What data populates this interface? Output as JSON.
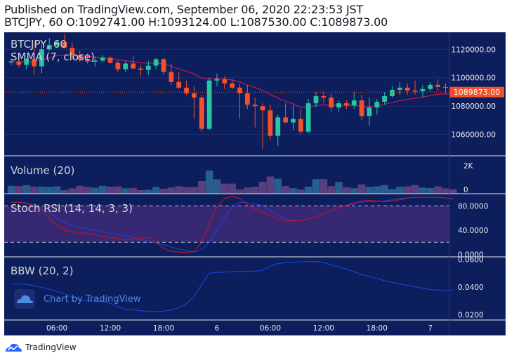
{
  "header": {
    "published": "Published on TradingView.com, September 06, 2020 22:23:53 JST",
    "ohlc": "BTCJPY, 60 O:1092741.00 H:1093124.00 L:1087530.00 C:1089873.00"
  },
  "colors": {
    "background": "#0c1e5b",
    "up": "#26c6a0",
    "down": "#f4502a",
    "smma": "#c2185b",
    "volume": "#6a4a8c",
    "rsi_band": "#3f2a78",
    "rsi_line": "#b71c1c",
    "bbw_line": "#1e3fd6",
    "price_tag": "#f4502a"
  },
  "chart_data": [
    {
      "type": "candlestick",
      "title": "BTCJPY, 60",
      "indicator_label": "SMMA (7, close)",
      "y_ticks": [
        "1120000.00",
        "1100000.00",
        "1080000.00",
        "1060000.00"
      ],
      "ylim": [
        1045000,
        1132000
      ],
      "last_price_label": "1089873.00",
      "last_price": 1089873,
      "x_ticks": [
        "06:00",
        "12:00",
        "18:00",
        "6",
        "06:00",
        "12:00",
        "18:00",
        "7"
      ],
      "candles": [
        {
          "o": 1111000,
          "h": 1113000,
          "l": 1109000,
          "c": 1111500
        },
        {
          "o": 1111500,
          "h": 1114000,
          "l": 1107000,
          "c": 1109000
        },
        {
          "o": 1109000,
          "h": 1114000,
          "l": 1106000,
          "c": 1113000
        },
        {
          "o": 1113000,
          "h": 1126000,
          "l": 1102000,
          "c": 1108000
        },
        {
          "o": 1108000,
          "h": 1124000,
          "l": 1103000,
          "c": 1120000
        },
        {
          "o": 1120000,
          "h": 1128000,
          "l": 1119000,
          "c": 1123000
        },
        {
          "o": 1123000,
          "h": 1126000,
          "l": 1121000,
          "c": 1125000
        },
        {
          "o": 1125000,
          "h": 1131000,
          "l": 1121000,
          "c": 1121000
        },
        {
          "o": 1121000,
          "h": 1125000,
          "l": 1113000,
          "c": 1116000
        },
        {
          "o": 1116000,
          "h": 1119000,
          "l": 1111000,
          "c": 1113000
        },
        {
          "o": 1113000,
          "h": 1117000,
          "l": 1110000,
          "c": 1111500
        },
        {
          "o": 1111500,
          "h": 1115000,
          "l": 1108000,
          "c": 1112000
        },
        {
          "o": 1112000,
          "h": 1116000,
          "l": 1111000,
          "c": 1114000
        },
        {
          "o": 1114000,
          "h": 1115000,
          "l": 1110000,
          "c": 1110500
        },
        {
          "o": 1110500,
          "h": 1112000,
          "l": 1104000,
          "c": 1106000
        },
        {
          "o": 1106000,
          "h": 1112000,
          "l": 1104000,
          "c": 1110000
        },
        {
          "o": 1110000,
          "h": 1115000,
          "l": 1106000,
          "c": 1106500
        },
        {
          "o": 1106500,
          "h": 1109000,
          "l": 1101000,
          "c": 1105500
        },
        {
          "o": 1105500,
          "h": 1112000,
          "l": 1102000,
          "c": 1108500
        },
        {
          "o": 1108500,
          "h": 1114000,
          "l": 1106000,
          "c": 1113000
        },
        {
          "o": 1113000,
          "h": 1114000,
          "l": 1102000,
          "c": 1104000
        },
        {
          "o": 1104000,
          "h": 1110000,
          "l": 1095000,
          "c": 1097000
        },
        {
          "o": 1097000,
          "h": 1104000,
          "l": 1092000,
          "c": 1093000
        },
        {
          "o": 1093000,
          "h": 1098000,
          "l": 1088000,
          "c": 1089000
        },
        {
          "o": 1089000,
          "h": 1094000,
          "l": 1071000,
          "c": 1086000
        },
        {
          "o": 1086000,
          "h": 1088000,
          "l": 1062000,
          "c": 1064000
        },
        {
          "o": 1064000,
          "h": 1100000,
          "l": 1063000,
          "c": 1098000
        },
        {
          "o": 1098000,
          "h": 1103000,
          "l": 1094000,
          "c": 1099000
        },
        {
          "o": 1099000,
          "h": 1101000,
          "l": 1092000,
          "c": 1096000
        },
        {
          "o": 1096000,
          "h": 1099000,
          "l": 1092000,
          "c": 1093000
        },
        {
          "o": 1093000,
          "h": 1096000,
          "l": 1071000,
          "c": 1089000
        },
        {
          "o": 1089000,
          "h": 1095000,
          "l": 1078000,
          "c": 1081000
        },
        {
          "o": 1081000,
          "h": 1086000,
          "l": 1065000,
          "c": 1080000
        },
        {
          "o": 1080000,
          "h": 1082000,
          "l": 1050000,
          "c": 1077000
        },
        {
          "o": 1077000,
          "h": 1081000,
          "l": 1056000,
          "c": 1059000
        },
        {
          "o": 1059000,
          "h": 1074000,
          "l": 1052000,
          "c": 1072000
        },
        {
          "o": 1072000,
          "h": 1082000,
          "l": 1068000,
          "c": 1068500
        },
        {
          "o": 1068500,
          "h": 1081000,
          "l": 1063000,
          "c": 1071000
        },
        {
          "o": 1071000,
          "h": 1078000,
          "l": 1060000,
          "c": 1062000
        },
        {
          "o": 1062000,
          "h": 1085000,
          "l": 1061000,
          "c": 1082000
        },
        {
          "o": 1082000,
          "h": 1090000,
          "l": 1079000,
          "c": 1087000
        },
        {
          "o": 1087000,
          "h": 1090000,
          "l": 1082000,
          "c": 1086000
        },
        {
          "o": 1086000,
          "h": 1089000,
          "l": 1076000,
          "c": 1079000
        },
        {
          "o": 1079000,
          "h": 1084000,
          "l": 1076000,
          "c": 1082000
        },
        {
          "o": 1082000,
          "h": 1084000,
          "l": 1078000,
          "c": 1080500
        },
        {
          "o": 1080500,
          "h": 1090000,
          "l": 1078000,
          "c": 1084000
        },
        {
          "o": 1084000,
          "h": 1088000,
          "l": 1070000,
          "c": 1073000
        },
        {
          "o": 1073000,
          "h": 1086000,
          "l": 1066000,
          "c": 1079000
        },
        {
          "o": 1079000,
          "h": 1085000,
          "l": 1074000,
          "c": 1083000
        },
        {
          "o": 1083000,
          "h": 1090000,
          "l": 1081000,
          "c": 1087000
        },
        {
          "o": 1087000,
          "h": 1094000,
          "l": 1086000,
          "c": 1091500
        },
        {
          "o": 1091500,
          "h": 1097000,
          "l": 1088000,
          "c": 1093000
        },
        {
          "o": 1093000,
          "h": 1096000,
          "l": 1088000,
          "c": 1091000
        },
        {
          "o": 1091000,
          "h": 1098000,
          "l": 1088000,
          "c": 1090500
        },
        {
          "o": 1090500,
          "h": 1095000,
          "l": 1086000,
          "c": 1092000
        },
        {
          "o": 1092000,
          "h": 1097000,
          "l": 1090000,
          "c": 1095000
        },
        {
          "o": 1095000,
          "h": 1099000,
          "l": 1091000,
          "c": 1093500
        },
        {
          "o": 1093500,
          "h": 1096000,
          "l": 1089000,
          "c": 1092741
        },
        {
          "o": 1092741,
          "h": 1093124,
          "l": 1087530,
          "c": 1089873
        }
      ],
      "smma": [
        1111000,
        1111000,
        1111500,
        1111200,
        1112500,
        1114000,
        1115500,
        1116000,
        1115800,
        1115400,
        1115000,
        1114500,
        1114200,
        1113600,
        1112600,
        1112000,
        1111300,
        1110500,
        1110200,
        1110500,
        1109600,
        1108100,
        1106200,
        1104400,
        1102700,
        1099500,
        1099300,
        1099500,
        1099000,
        1098400,
        1097000,
        1095000,
        1093000,
        1091000,
        1088000,
        1085700,
        1083400,
        1081700,
        1079000,
        1079500,
        1080500,
        1081000,
        1080700,
        1080800,
        1080500,
        1080600,
        1079700,
        1079600,
        1080000,
        1081300,
        1082600,
        1083900,
        1084800,
        1085600,
        1086400,
        1087400,
        1088300,
        1088500,
        1088700
      ]
    },
    {
      "type": "bar",
      "title": "Volume (20)",
      "y_ticks": [
        "2K",
        "0"
      ],
      "ylim": [
        0,
        2700
      ],
      "values": [
        560,
        540,
        600,
        510,
        500,
        490,
        520,
        250,
        380,
        560,
        480,
        430,
        560,
        500,
        520,
        380,
        410,
        250,
        280,
        480,
        350,
        440,
        540,
        480,
        490,
        900,
        1650,
        1030,
        720,
        720,
        300,
        450,
        500,
        850,
        1230,
        1070,
        550,
        390,
        290,
        500,
        1040,
        1050,
        540,
        830,
        460,
        390,
        660,
        490,
        520,
        610,
        330,
        500,
        520,
        620,
        440,
        400,
        520,
        380,
        310
      ]
    },
    {
      "type": "line",
      "title": "Stoch RSI (14, 14, 3, 3)",
      "y_ticks": [
        "80.0000",
        "40.0000",
        "0.0000"
      ],
      "bands": [
        80,
        20
      ],
      "ylim": [
        -4,
        100
      ],
      "series": [
        {
          "values": [
            86,
            86,
            85,
            81,
            75,
            68,
            60,
            52,
            47,
            44,
            42,
            40,
            38,
            35,
            32,
            30,
            28,
            25,
            22,
            19,
            16,
            12,
            9,
            6,
            4,
            8,
            20,
            40,
            60,
            78,
            86,
            85,
            83,
            80,
            72,
            64,
            58,
            56,
            56,
            58,
            62,
            67,
            72,
            77,
            81,
            83,
            86,
            87,
            87,
            88,
            90,
            92,
            93,
            94,
            94,
            94,
            94,
            93,
            92
          ]
        },
        {
          "values": [
            86,
            86,
            84,
            80,
            72,
            60,
            48,
            40,
            38,
            36,
            34,
            32,
            30,
            28,
            26,
            24,
            25,
            27,
            28,
            20,
            10,
            5,
            4,
            3,
            5,
            20,
            50,
            78,
            92,
            96,
            92,
            82,
            75,
            69,
            64,
            58,
            55,
            55,
            56,
            58,
            62,
            67,
            72,
            77,
            81,
            85,
            88,
            89,
            88,
            87,
            88,
            90,
            93,
            94,
            94,
            94,
            94,
            93,
            91
          ]
        }
      ]
    },
    {
      "type": "line",
      "title": "BBW (20, 2)",
      "y_ticks": [
        "0.0600",
        "0.0400",
        "0.0200"
      ],
      "ylim": [
        0.0162,
        0.0618
      ],
      "series": [
        {
          "values": [
            0.0422,
            0.0422,
            0.042,
            0.041,
            0.0398,
            0.0384,
            0.037,
            0.035,
            0.033,
            0.031,
            0.03,
            0.03,
            0.0296,
            0.0282,
            0.026,
            0.024,
            0.0235,
            0.023,
            0.0225,
            0.0224,
            0.0226,
            0.0234,
            0.025,
            0.028,
            0.033,
            0.042,
            0.05,
            0.0506,
            0.0508,
            0.051,
            0.0512,
            0.0514,
            0.0515,
            0.052,
            0.055,
            0.057,
            0.0576,
            0.058,
            0.0582,
            0.0584,
            0.0585,
            0.0578,
            0.056,
            0.0545,
            0.053,
            0.051,
            0.049,
            0.0476,
            0.0462,
            0.0446,
            0.0434,
            0.0422,
            0.0412,
            0.0402,
            0.0392,
            0.0382,
            0.0378,
            0.0376,
            0.0378
          ]
        }
      ]
    }
  ],
  "watermark": {
    "text": "Chart by TradingView"
  },
  "footer": {
    "brand": "TradingView"
  }
}
